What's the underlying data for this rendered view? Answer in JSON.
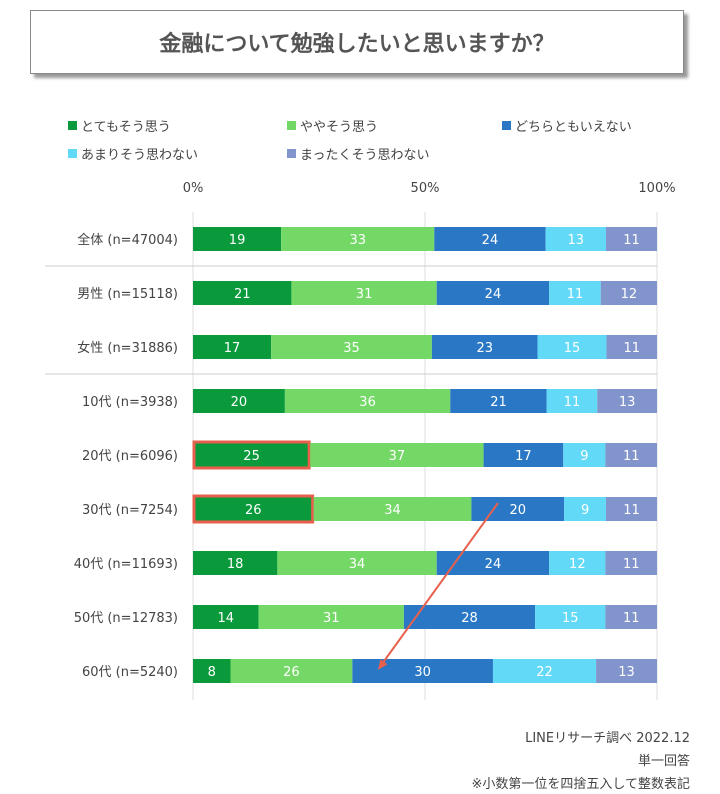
{
  "title": "金融について勉強したいと思いますか？",
  "chart_data": {
    "type": "bar",
    "orientation": "horizontal-stacked-100",
    "title": "金融について勉強したいと思いますか？",
    "xlim": [
      0,
      100
    ],
    "x_ticks": [
      "0%",
      "50%",
      "100%"
    ],
    "legend_position": "top",
    "categories": [
      "全体 (n=47004)",
      "男性 (n=15118)",
      "女性 (n=31886)",
      "10代 (n=3938)",
      "20代 (n=6096)",
      "30代 (n=7254)",
      "40代 (n=11693)",
      "50代 (n=12783)",
      "60代 (n=5240)"
    ],
    "series": [
      {
        "name": "とてもそう思う",
        "color": "#0a9a3c",
        "values": [
          19,
          21,
          17,
          20,
          25,
          26,
          18,
          14,
          8
        ]
      },
      {
        "name": "ややそう思う",
        "color": "#74d867",
        "values": [
          33,
          31,
          35,
          36,
          37,
          34,
          34,
          31,
          26
        ]
      },
      {
        "name": "どちらともいえない",
        "color": "#2a78c5",
        "values": [
          24,
          24,
          23,
          21,
          17,
          20,
          24,
          28,
          30
        ]
      },
      {
        "name": "あまりそう思わない",
        "color": "#62d9f7",
        "values": [
          13,
          11,
          15,
          11,
          9,
          9,
          12,
          15,
          22
        ]
      },
      {
        "name": "まったくそう思わない",
        "color": "#8294cc",
        "values": [
          11,
          12,
          11,
          13,
          11,
          11,
          11,
          11,
          13
        ]
      }
    ],
    "highlighted": [
      "20代 (n=6096) とてもそう思う",
      "30代 (n=7254) とてもそう思う"
    ],
    "highlight_color": "#e8604c",
    "annotation": "arrow from 30代 to 60代"
  },
  "footer": {
    "source": "LINEリサーチ調べ 2022.12",
    "answer_type": "単一回答",
    "note": "※小数第一位を四捨五入して整数表記"
  }
}
